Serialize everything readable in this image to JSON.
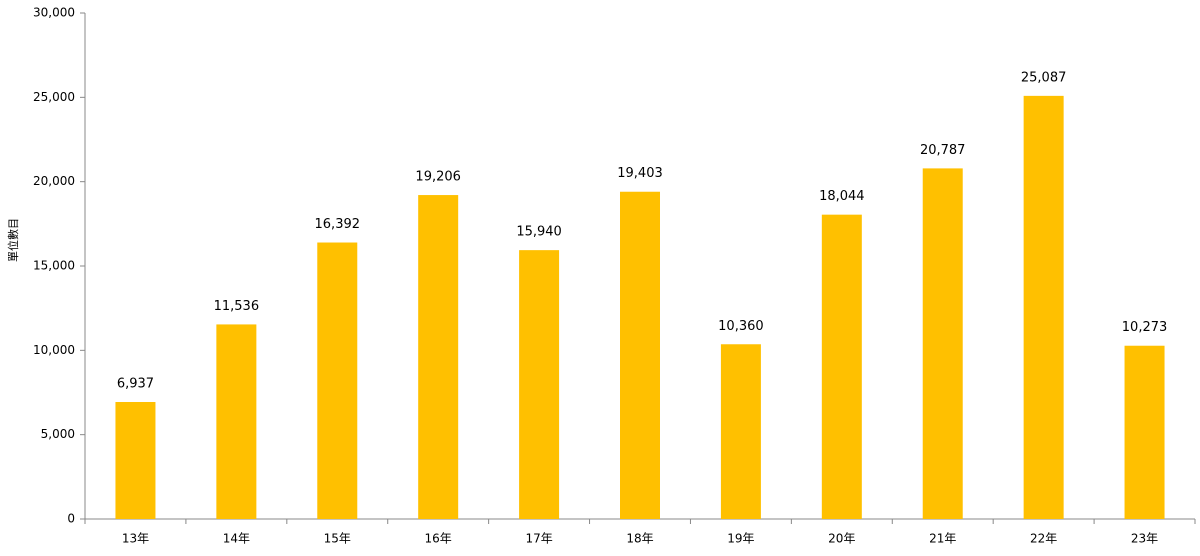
{
  "chart_data": {
    "type": "bar",
    "y_label": "單位數目",
    "categories": [
      "13年",
      "14年",
      "15年",
      "16年",
      "17年",
      "18年",
      "19年",
      "20年",
      "21年",
      "22年",
      "23年"
    ],
    "values": [
      6937,
      11536,
      16392,
      19206,
      15940,
      19403,
      10360,
      18044,
      20787,
      25087,
      10273
    ],
    "value_labels": [
      "6,937",
      "11,536",
      "16,392",
      "19,206",
      "15,940",
      "19,403",
      "10,360",
      "18,044",
      "20,787",
      "25,087",
      "10,273"
    ],
    "color": "#ffc000",
    "ylim": [
      0,
      30000
    ],
    "yticks": [
      0,
      {
        "value": 5000,
        "label": "5,000"
      },
      {
        "value": 10000,
        "label": "10,000"
      },
      {
        "value": 15000,
        "label": "15,000"
      },
      {
        "value": 20000,
        "label": "20,000"
      },
      {
        "value": 25000,
        "label": "25,000"
      },
      {
        "value": 30000,
        "label": "30,000"
      }
    ],
    "grid": false
  }
}
